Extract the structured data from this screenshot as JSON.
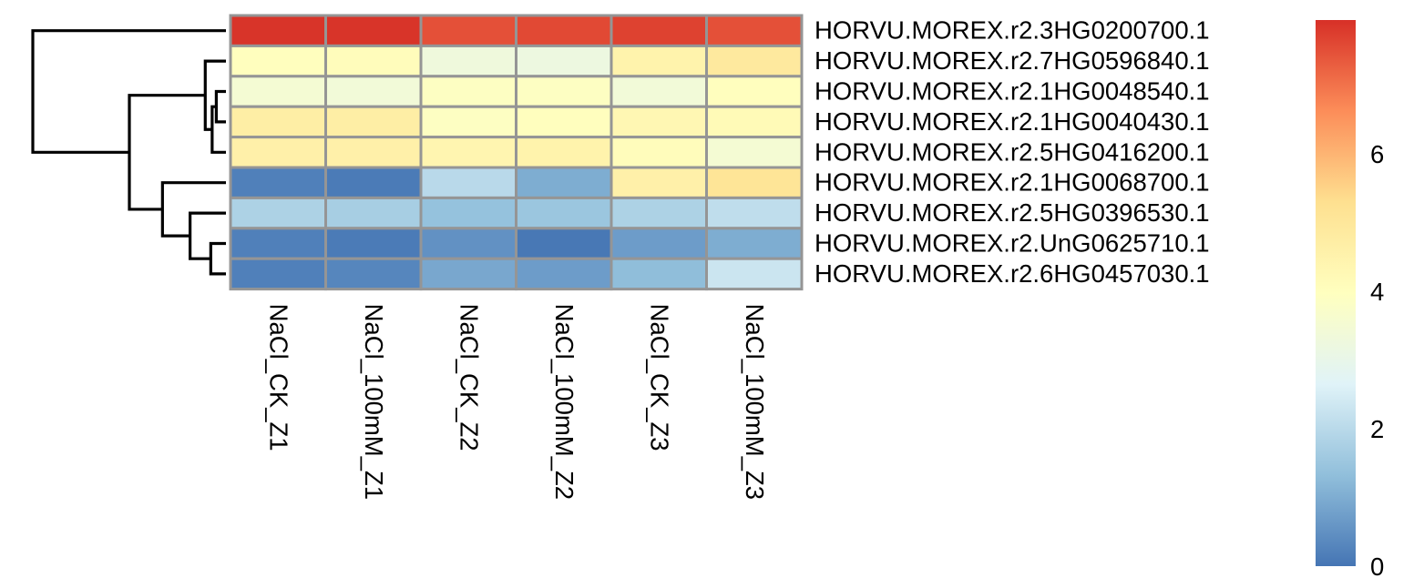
{
  "chart_data": {
    "type": "heatmap",
    "title": "",
    "xlabel": "",
    "ylabel": "",
    "columns": [
      "NaCl_CK_Z1",
      "NaCl_100mM_Z1",
      "NaCl_CK_Z2",
      "NaCl_100mM_Z2",
      "NaCl_CK_Z3",
      "NaCl_100mM_Z3"
    ],
    "rows": [
      "HORVU.MOREX.r2.3HG0200700.1",
      "HORVU.MOREX.r2.7HG0596840.1",
      "HORVU.MOREX.r2.1HG0048540.1",
      "HORVU.MOREX.r2.1HG0040430.1",
      "HORVU.MOREX.r2.5HG0416200.1",
      "HORVU.MOREX.r2.1HG0068700.1",
      "HORVU.MOREX.r2.5HG0396530.1",
      "HORVU.MOREX.r2.UnG0625710.1",
      "HORVU.MOREX.r2.6HG0457030.1"
    ],
    "values": [
      [
        7.9,
        7.9,
        7.5,
        7.6,
        7.7,
        7.5
      ],
      [
        4.0,
        4.1,
        3.3,
        3.2,
        4.5,
        4.9
      ],
      [
        3.5,
        3.4,
        3.9,
        3.9,
        3.4,
        4.0
      ],
      [
        4.7,
        4.7,
        3.9,
        4.0,
        4.3,
        4.2
      ],
      [
        4.6,
        4.6,
        4.4,
        4.5,
        4.1,
        3.5
      ],
      [
        0.2,
        0.1,
        2.0,
        1.0,
        4.6,
        5.1
      ],
      [
        1.8,
        1.7,
        1.4,
        1.5,
        1.8,
        2.1
      ],
      [
        0.2,
        0.1,
        0.5,
        0.05,
        0.7,
        1.0
      ],
      [
        0.2,
        0.3,
        0.9,
        0.7,
        1.3,
        2.3
      ]
    ],
    "colorbar": {
      "min": 0,
      "max": 7.95,
      "ticks": [
        0,
        2,
        4,
        6
      ],
      "colors": [
        "#4575b4",
        "#91bfdb",
        "#e0f3f8",
        "#ffffbf",
        "#fee090",
        "#fc8d59",
        "#d73027"
      ]
    },
    "row_dendrogram": {
      "merges": [
        {
          "left": "row:2",
          "right": "row:3",
          "height": 0.35
        },
        {
          "left": "node:0",
          "right": "row:4",
          "height": 0.5
        },
        {
          "left": "row:1",
          "right": "node:1",
          "height": 0.75
        },
        {
          "left": "row:7",
          "right": "row:8",
          "height": 0.55
        },
        {
          "left": "row:6",
          "right": "node:3",
          "height": 1.3
        },
        {
          "left": "row:5",
          "right": "node:4",
          "height": 2.3
        },
        {
          "left": "node:2",
          "right": "node:5",
          "height": 3.5
        },
        {
          "left": "row:0",
          "right": "node:6",
          "height": 7.0
        }
      ]
    },
    "grid": true,
    "legend": "right"
  }
}
